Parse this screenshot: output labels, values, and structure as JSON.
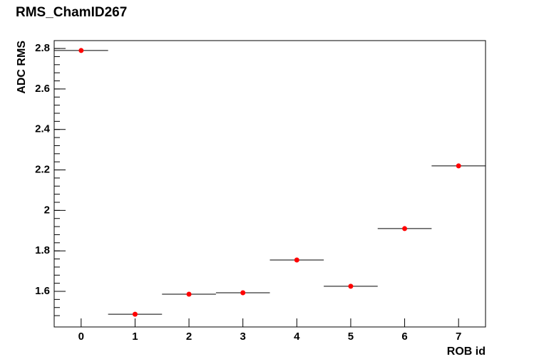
{
  "chart_data": {
    "type": "histogram",
    "title": "RMS_ChamID267",
    "x_label": "ROB id",
    "y_label": "ADC RMS",
    "bins": [
      -0.5,
      0.5,
      1.5,
      2.5,
      3.5,
      4.5,
      5.5,
      6.5,
      7.5
    ],
    "values": [
      2.79,
      1.487,
      1.586,
      1.593,
      1.755,
      1.625,
      1.91,
      2.22
    ],
    "color": "#000000",
    "marker_color": "#ff0000",
    "xlim": [
      -0.5,
      7.5
    ],
    "xticks": [
      0,
      1,
      2,
      3,
      4,
      5,
      6,
      7
    ],
    "ylim": [
      1.424,
      2.839
    ],
    "yticks": [
      1.6,
      1.8,
      2,
      2.2,
      2.4,
      2.6,
      2.8
    ]
  }
}
